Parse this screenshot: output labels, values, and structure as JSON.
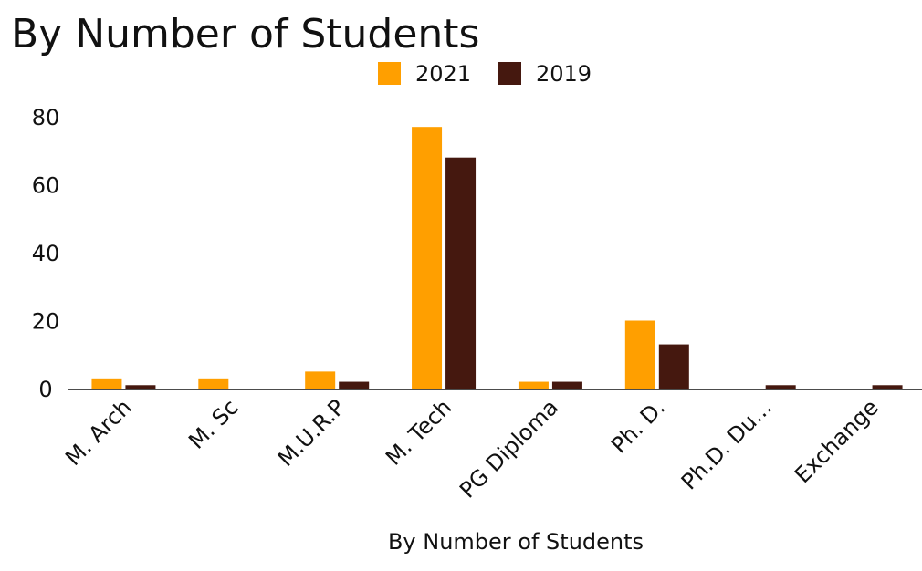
{
  "chart_data": {
    "type": "bar",
    "title": "By Number of Students",
    "xlabel": "By Number of Students",
    "ylabel": "",
    "ylim": [
      0,
      80
    ],
    "yticks": [
      0,
      20,
      40,
      60,
      80
    ],
    "grid": false,
    "legend_placement": "top-center",
    "categories": [
      "M. Arch",
      "M. Sc",
      "M.U.R.P",
      "M. Tech",
      "PG Diploma",
      "Ph. D.",
      "Ph.D. Du...",
      "Exchange"
    ],
    "series": [
      {
        "name": "2021",
        "color": "#FF9F00",
        "values": [
          3,
          3,
          5,
          77,
          2,
          20,
          0,
          0
        ]
      },
      {
        "name": "2019",
        "color": "#45180F",
        "values": [
          1,
          0,
          2,
          68,
          2,
          13,
          1,
          1
        ]
      }
    ]
  }
}
